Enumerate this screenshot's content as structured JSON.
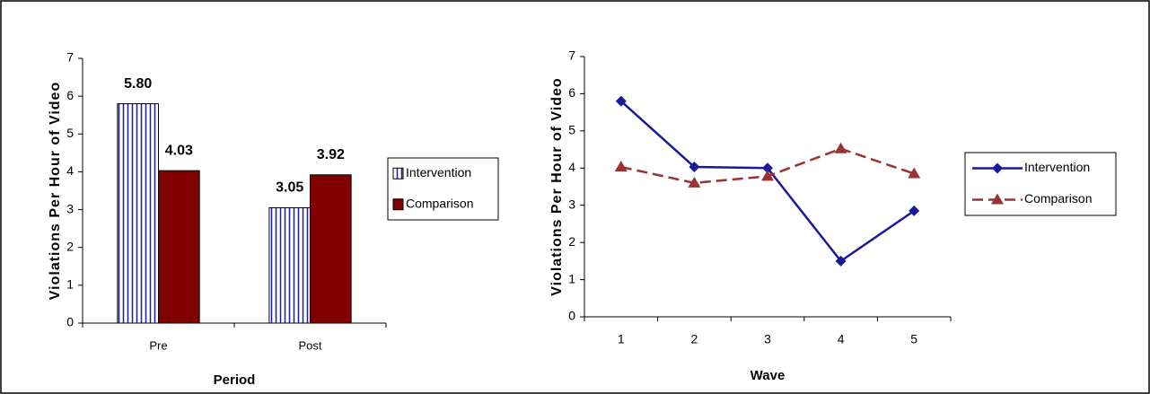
{
  "chart_data": [
    {
      "type": "bar",
      "xlabel": "Period",
      "ylabel": "Violations Per Hour of Video",
      "categories": [
        "Pre",
        "Post"
      ],
      "series": [
        {
          "name": "Intervention",
          "color": "#1a1a99",
          "pattern": "vertical-stripes",
          "values": [
            5.8,
            3.05
          ],
          "value_labels": [
            "5.80",
            "3.05"
          ]
        },
        {
          "name": "Comparison",
          "color": "#800000",
          "values": [
            4.03,
            3.92
          ],
          "value_labels": [
            "4.03",
            "3.92"
          ]
        }
      ],
      "ylim": [
        0,
        7
      ],
      "yticks": [
        0,
        1,
        2,
        3,
        4,
        5,
        6,
        7
      ],
      "grid": false,
      "legend": "right"
    },
    {
      "type": "line",
      "xlabel": "Wave",
      "ylabel": "Violations Per Hour of Video",
      "categories": [
        "1",
        "2",
        "3",
        "4",
        "5"
      ],
      "series": [
        {
          "name": "Intervention",
          "color": "#1a1a99",
          "marker": "diamond",
          "dashed": false,
          "values": [
            5.8,
            4.03,
            4.0,
            1.5,
            2.85
          ]
        },
        {
          "name": "Comparison",
          "color": "#993333",
          "marker": "triangle",
          "dashed": true,
          "values": [
            4.03,
            3.6,
            3.78,
            4.52,
            3.85
          ]
        }
      ],
      "ylim": [
        0,
        7
      ],
      "yticks": [
        0,
        1,
        2,
        3,
        4,
        5,
        6,
        7
      ],
      "grid": false,
      "legend": "right"
    }
  ]
}
